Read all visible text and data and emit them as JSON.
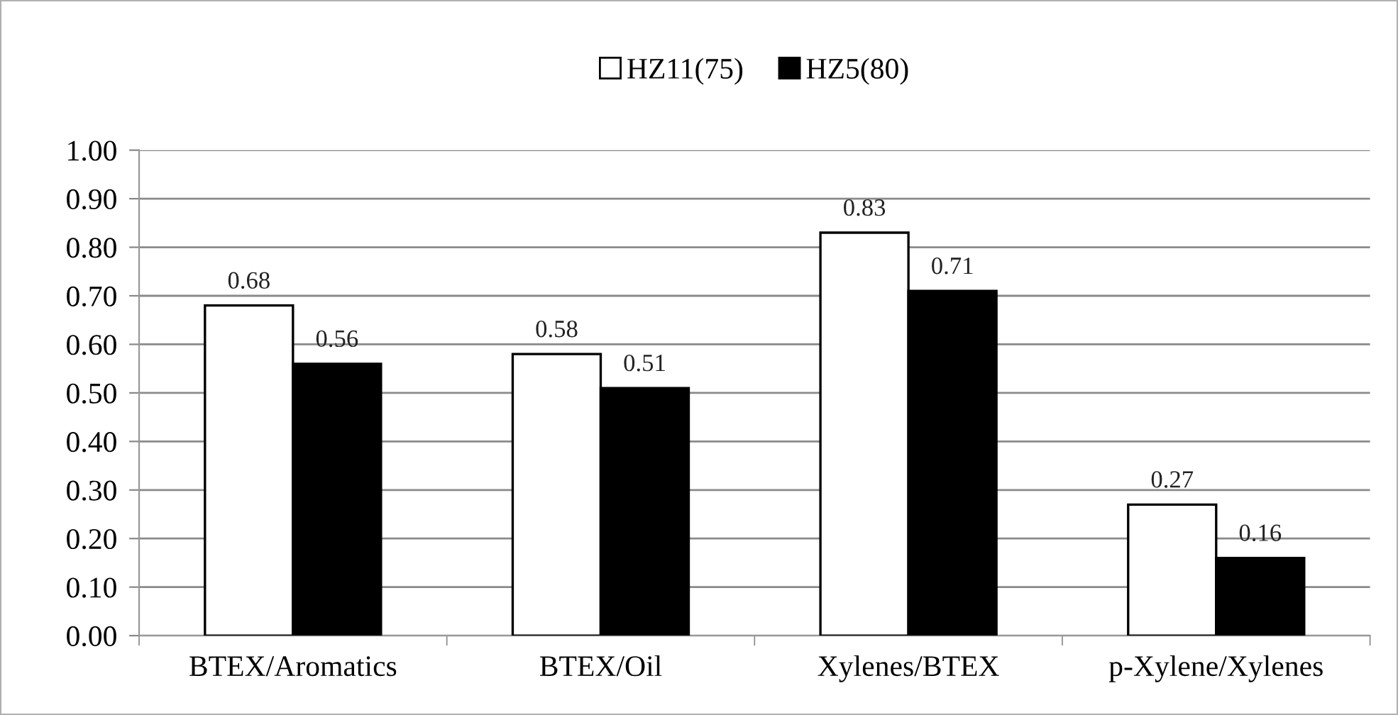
{
  "chart_data": {
    "type": "bar",
    "categories": [
      "BTEX/Aromatics",
      "BTEX/Oil",
      "Xylenes/BTEX",
      "p-Xylene/Xylenes"
    ],
    "series": [
      {
        "name": "HZ11(75)",
        "color": "#ffffff",
        "values": [
          0.68,
          0.58,
          0.83,
          0.27
        ]
      },
      {
        "name": "HZ5(80)",
        "color": "#000000",
        "values": [
          0.56,
          0.51,
          0.71,
          0.16
        ]
      }
    ],
    "ylim": [
      0,
      1
    ],
    "yticks": [
      {
        "value": 0,
        "label": "0.00"
      },
      {
        "value": 0.1,
        "label": "0.10"
      },
      {
        "value": 0.2,
        "label": "0.20"
      },
      {
        "value": 0.3,
        "label": "0.30"
      },
      {
        "value": 0.4,
        "label": "0.40"
      },
      {
        "value": 0.5,
        "label": "0.50"
      },
      {
        "value": 0.6,
        "label": "0.60"
      },
      {
        "value": 0.7,
        "label": "0.70"
      },
      {
        "value": 0.8,
        "label": "0.80"
      },
      {
        "value": 0.9,
        "label": "0.90"
      },
      {
        "value": 1,
        "label": "1.00"
      }
    ],
    "grid": "y",
    "legend": "top",
    "data_labels": true
  }
}
